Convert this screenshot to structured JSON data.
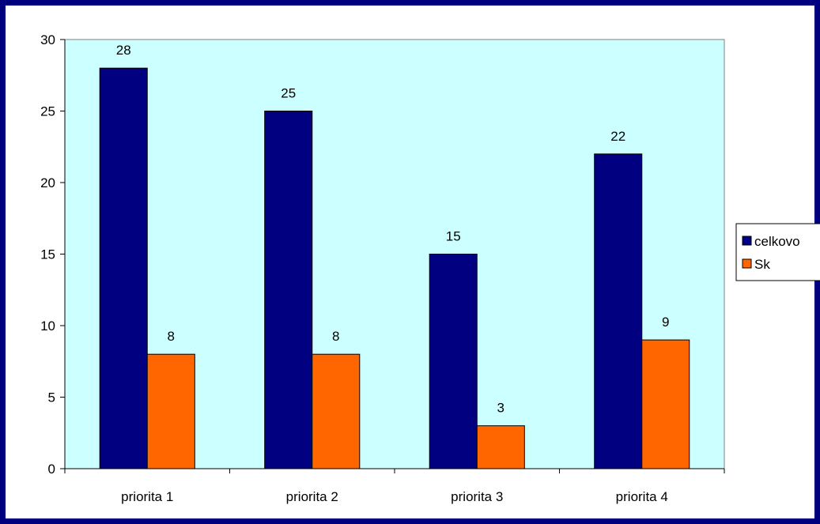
{
  "chart_data": {
    "type": "bar",
    "title": "",
    "xlabel": "",
    "ylabel": "",
    "categories": [
      "priorita 1",
      "priorita 2",
      "priorita 3",
      "priorita 4"
    ],
    "series": [
      {
        "name": "celkovo",
        "values": [
          28,
          25,
          15,
          22
        ],
        "color": "#000080"
      },
      {
        "name": "Sk",
        "values": [
          8,
          8,
          3,
          9
        ],
        "color": "#ff6600"
      }
    ],
    "ylim": [
      0,
      30
    ],
    "yticks": [
      "0",
      "5",
      "10",
      "15",
      "20",
      "25",
      "30"
    ],
    "data_labels": true,
    "grid": false,
    "legend_position": "right",
    "plot_background": "#ccffff"
  }
}
